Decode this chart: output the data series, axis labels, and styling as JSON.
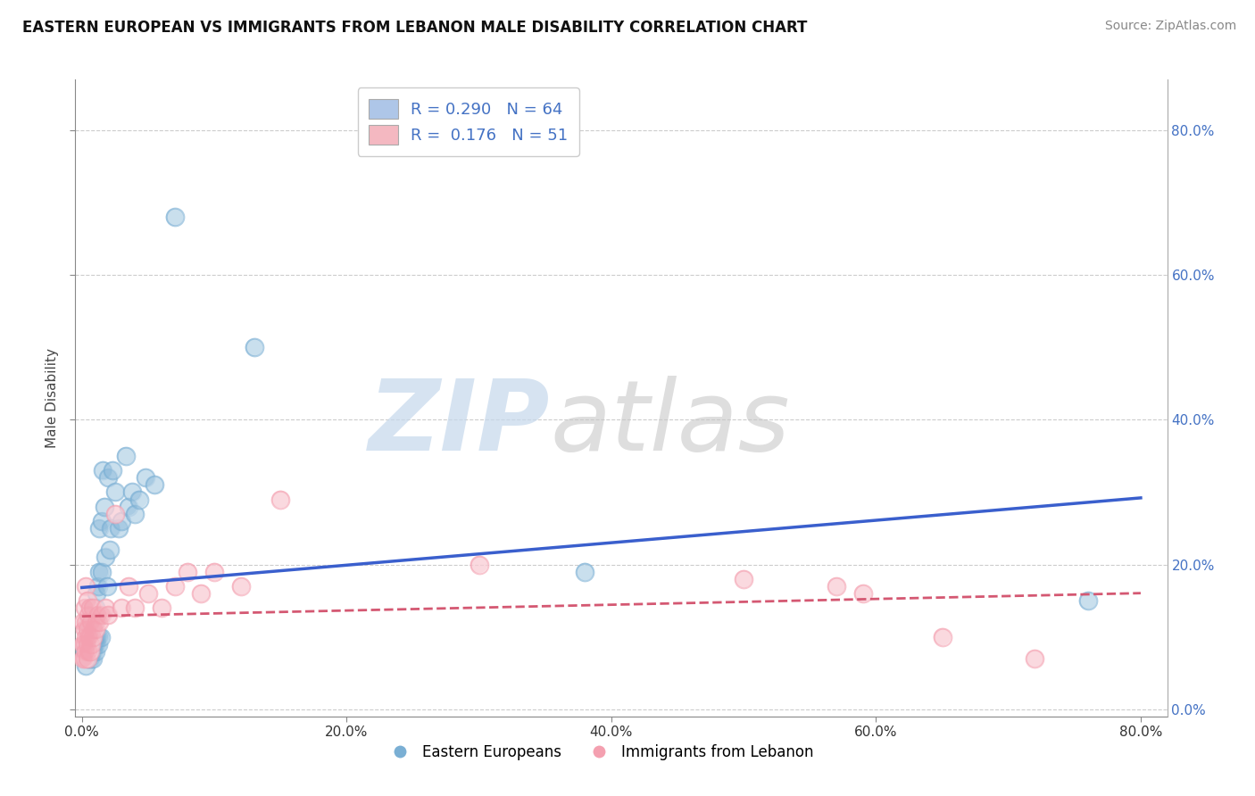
{
  "title": "EASTERN EUROPEAN VS IMMIGRANTS FROM LEBANON MALE DISABILITY CORRELATION CHART",
  "source": "Source: ZipAtlas.com",
  "ylabel": "Male Disability",
  "xlim": [
    -0.005,
    0.82
  ],
  "ylim": [
    -0.01,
    0.87
  ],
  "xtick_vals": [
    0.0,
    0.2,
    0.4,
    0.6,
    0.8
  ],
  "ytick_vals": [
    0.0,
    0.2,
    0.4,
    0.6,
    0.8
  ],
  "legend_line1": "R = 0.290   N = 64",
  "legend_line2": "R =  0.176   N = 51",
  "legend_blue_color": "#aec6e8",
  "legend_pink_color": "#f4b8c1",
  "blue_dot_color": "#7aafd4",
  "pink_dot_color": "#f4a0b0",
  "blue_line_color": "#3a5fcd",
  "pink_line_color": "#d45872",
  "background_color": "#ffffff",
  "watermark_zip_color": "#c5d8ec",
  "watermark_atlas_color": "#c8c8c8",
  "grid_color": "#cccccc",
  "series1_name": "Eastern Europeans",
  "series2_name": "Immigrants from Lebanon",
  "blue_scatter_x": [
    0.002,
    0.003,
    0.004,
    0.004,
    0.005,
    0.005,
    0.005,
    0.005,
    0.006,
    0.006,
    0.006,
    0.006,
    0.007,
    0.007,
    0.007,
    0.007,
    0.007,
    0.008,
    0.008,
    0.008,
    0.008,
    0.008,
    0.009,
    0.009,
    0.009,
    0.009,
    0.01,
    0.01,
    0.01,
    0.01,
    0.011,
    0.011,
    0.011,
    0.012,
    0.012,
    0.012,
    0.013,
    0.013,
    0.013,
    0.014,
    0.015,
    0.015,
    0.016,
    0.017,
    0.018,
    0.019,
    0.02,
    0.021,
    0.022,
    0.023,
    0.025,
    0.028,
    0.03,
    0.033,
    0.035,
    0.038,
    0.04,
    0.043,
    0.048,
    0.055,
    0.07,
    0.13,
    0.38,
    0.76
  ],
  "blue_scatter_y": [
    0.08,
    0.06,
    0.07,
    0.09,
    0.07,
    0.08,
    0.1,
    0.12,
    0.07,
    0.08,
    0.09,
    0.11,
    0.07,
    0.08,
    0.09,
    0.1,
    0.13,
    0.07,
    0.08,
    0.09,
    0.1,
    0.11,
    0.08,
    0.09,
    0.1,
    0.12,
    0.08,
    0.09,
    0.1,
    0.14,
    0.09,
    0.1,
    0.16,
    0.09,
    0.1,
    0.17,
    0.1,
    0.19,
    0.25,
    0.1,
    0.19,
    0.26,
    0.33,
    0.28,
    0.21,
    0.17,
    0.32,
    0.22,
    0.25,
    0.33,
    0.3,
    0.25,
    0.26,
    0.35,
    0.28,
    0.3,
    0.27,
    0.29,
    0.32,
    0.31,
    0.68,
    0.5,
    0.19,
    0.15
  ],
  "pink_scatter_x": [
    0.001,
    0.001,
    0.001,
    0.002,
    0.002,
    0.002,
    0.002,
    0.003,
    0.003,
    0.003,
    0.003,
    0.004,
    0.004,
    0.004,
    0.004,
    0.005,
    0.005,
    0.005,
    0.006,
    0.006,
    0.006,
    0.007,
    0.007,
    0.008,
    0.008,
    0.009,
    0.01,
    0.011,
    0.012,
    0.013,
    0.015,
    0.018,
    0.02,
    0.025,
    0.03,
    0.035,
    0.04,
    0.05,
    0.06,
    0.07,
    0.08,
    0.09,
    0.1,
    0.12,
    0.15,
    0.3,
    0.5,
    0.57,
    0.59,
    0.65,
    0.72
  ],
  "pink_scatter_y": [
    0.07,
    0.09,
    0.12,
    0.07,
    0.09,
    0.11,
    0.14,
    0.08,
    0.1,
    0.12,
    0.17,
    0.07,
    0.09,
    0.11,
    0.15,
    0.08,
    0.1,
    0.13,
    0.08,
    0.1,
    0.14,
    0.09,
    0.12,
    0.1,
    0.14,
    0.11,
    0.11,
    0.12,
    0.13,
    0.12,
    0.13,
    0.14,
    0.13,
    0.27,
    0.14,
    0.17,
    0.14,
    0.16,
    0.14,
    0.17,
    0.19,
    0.16,
    0.19,
    0.17,
    0.29,
    0.2,
    0.18,
    0.17,
    0.16,
    0.1,
    0.07
  ]
}
